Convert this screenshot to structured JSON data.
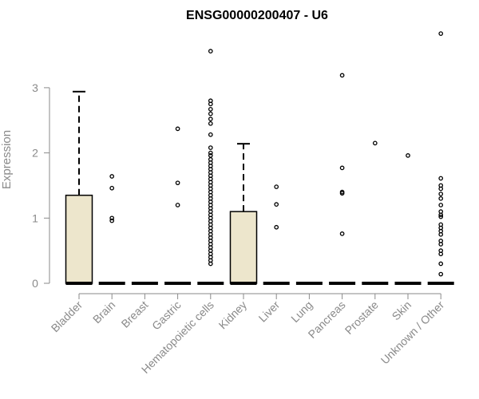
{
  "chart_data": {
    "type": "box",
    "title": "ENSG00000200407 - U6",
    "xlabel": "",
    "ylabel": "Expression",
    "ylim": [
      0,
      4
    ],
    "yticks": [
      "0",
      "1",
      "2",
      "3"
    ],
    "grid": false,
    "box_fill": "#ede6cc",
    "box_stroke": "#000000",
    "axis_color": "#8a8a8a",
    "categories": [
      "Bladder",
      "Brain",
      "Breast",
      "Gastric",
      "Hematopoietic cells",
      "Kidney",
      "Liver",
      "Lung",
      "Pancreas",
      "Prostate",
      "Skin",
      "Unknown / Other"
    ],
    "boxes": [
      {
        "q1": 0,
        "median": 0,
        "q3": 1.35,
        "whisker_low": 0,
        "whisker_high": 2.94,
        "outliers": []
      },
      {
        "q1": 0,
        "median": 0,
        "q3": 0,
        "whisker_low": 0,
        "whisker_high": 0,
        "outliers": [
          1.64,
          1.46,
          1.0,
          0.96
        ]
      },
      {
        "q1": 0,
        "median": 0,
        "q3": 0,
        "whisker_low": 0,
        "whisker_high": 0,
        "outliers": []
      },
      {
        "q1": 0,
        "median": 0,
        "q3": 0,
        "whisker_low": 0,
        "whisker_high": 0,
        "outliers": [
          2.37,
          1.54,
          1.2
        ]
      },
      {
        "q1": 0,
        "median": 0,
        "q3": 0,
        "whisker_low": 0,
        "whisker_high": 0,
        "outliers": [
          3.56,
          2.8,
          2.75,
          2.67,
          2.6,
          2.52,
          2.45,
          2.28,
          2.08,
          2.0,
          1.96,
          1.9,
          1.85,
          1.8,
          1.75,
          1.7,
          1.65,
          1.6,
          1.55,
          1.5,
          1.45,
          1.4,
          1.35,
          1.3,
          1.25,
          1.2,
          1.15,
          1.1,
          1.05,
          1.0,
          0.95,
          0.9,
          0.85,
          0.8,
          0.75,
          0.7,
          0.65,
          0.6,
          0.55,
          0.5,
          0.45,
          0.4,
          0.35,
          0.3
        ]
      },
      {
        "q1": 0,
        "median": 0,
        "q3": 1.1,
        "whisker_low": 0,
        "whisker_high": 2.14,
        "outliers": []
      },
      {
        "q1": 0,
        "median": 0,
        "q3": 0,
        "whisker_low": 0,
        "whisker_high": 0,
        "outliers": [
          1.48,
          1.21,
          0.86
        ]
      },
      {
        "q1": 0,
        "median": 0,
        "q3": 0,
        "whisker_low": 0,
        "whisker_high": 0,
        "outliers": []
      },
      {
        "q1": 0,
        "median": 0,
        "q3": 0,
        "whisker_low": 0,
        "whisker_high": 0,
        "outliers": [
          3.19,
          1.77,
          1.4,
          1.38,
          0.76
        ]
      },
      {
        "q1": 0,
        "median": 0,
        "q3": 0,
        "whisker_low": 0,
        "whisker_high": 0,
        "outliers": [
          2.15
        ]
      },
      {
        "q1": 0,
        "median": 0,
        "q3": 0,
        "whisker_low": 0,
        "whisker_high": 0,
        "outliers": [
          1.96
        ]
      },
      {
        "q1": 0,
        "median": 0,
        "q3": 0,
        "whisker_low": 0,
        "whisker_high": 0,
        "outliers": [
          3.83,
          1.61,
          1.5,
          1.45,
          1.37,
          1.3,
          1.2,
          1.1,
          1.05,
          1.02,
          0.9,
          0.85,
          0.8,
          0.75,
          0.65,
          0.6,
          0.5,
          0.45,
          0.3,
          0.14
        ]
      }
    ]
  }
}
